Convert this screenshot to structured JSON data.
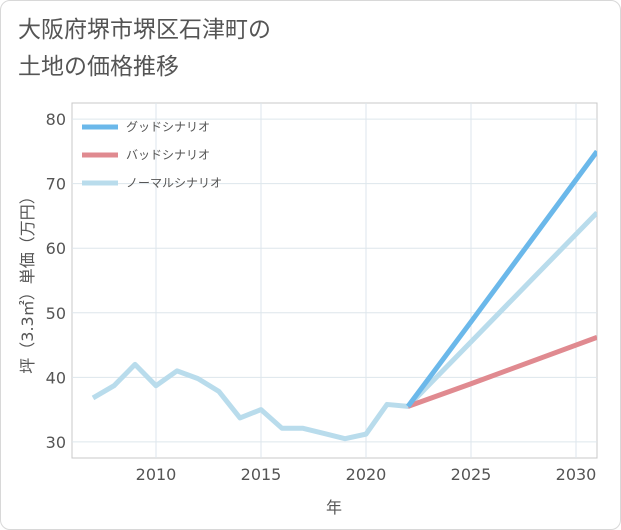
{
  "title": {
    "line1": "大阪府堺市堺区石津町の",
    "line2": "土地の価格推移"
  },
  "chart_data": {
    "type": "line",
    "xlabel": "年",
    "ylabel": "坪（3.3㎡）単価（万円）",
    "xlim": [
      2006,
      2031
    ],
    "ylim": [
      27.5,
      82.5
    ],
    "xticks": [
      2010,
      2015,
      2020,
      2025,
      2030
    ],
    "yticks": [
      30,
      40,
      50,
      60,
      70,
      80
    ],
    "grid": true,
    "legend_position": "top-left",
    "series": [
      {
        "name": "グッドシナリオ",
        "color": "#6bb8ea",
        "x": [
          2022,
          2025,
          2028,
          2031
        ],
        "y": [
          35.5,
          48.6,
          61.8,
          75.0
        ]
      },
      {
        "name": "バッドシナリオ",
        "color": "#e08a90",
        "x": [
          2022,
          2025,
          2028,
          2031
        ],
        "y": [
          35.5,
          39.0,
          42.6,
          46.2
        ]
      },
      {
        "name": "ノーマルシナリオ",
        "color": "#b9dcec",
        "x": [
          2007,
          2008,
          2009,
          2010,
          2011,
          2012,
          2013,
          2014,
          2015,
          2016,
          2017,
          2018,
          2019,
          2020,
          2021,
          2022,
          2025,
          2028,
          2031
        ],
        "y": [
          36.8,
          38.7,
          42.0,
          38.7,
          41.0,
          39.8,
          37.8,
          33.7,
          35.0,
          32.1,
          32.1,
          31.3,
          30.5,
          31.2,
          35.8,
          35.5,
          45.5,
          55.5,
          65.5
        ]
      }
    ]
  }
}
